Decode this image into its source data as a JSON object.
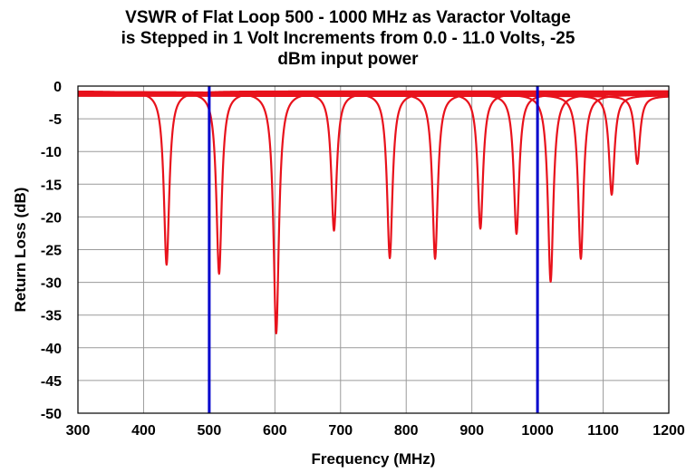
{
  "chart_data": {
    "type": "line",
    "title_lines": [
      "VSWR of Flat Loop 500 - 1000 MHz as Varactor Voltage",
      "is Stepped in 1 Volt Increments from 0.0 - 11.0 Volts, -25",
      "dBm input power"
    ],
    "xlabel": "Frequency (MHz)",
    "ylabel": "Return Loss (dB)",
    "xlim": [
      300,
      1200
    ],
    "ylim": [
      -50,
      0
    ],
    "x_ticks": [
      300,
      400,
      500,
      600,
      700,
      800,
      900,
      1000,
      1100,
      1200
    ],
    "y_ticks": [
      0,
      -5,
      -10,
      -15,
      -20,
      -25,
      -30,
      -35,
      -40,
      -45,
      -50
    ],
    "grid": true,
    "legend": "none",
    "series_color": "#e8121c",
    "marker_color": "#0000cc",
    "vertical_markers_mhz": [
      500,
      1000
    ],
    "series": [
      {
        "resonance_mhz": 435,
        "min_db": -27.3,
        "baseline_db": -0.8
      },
      {
        "resonance_mhz": 515,
        "min_db": -28.7,
        "baseline_db": -0.9
      },
      {
        "resonance_mhz": 602,
        "min_db": -37.8,
        "baseline_db": -0.9
      },
      {
        "resonance_mhz": 690,
        "min_db": -22.1,
        "baseline_db": -1.0
      },
      {
        "resonance_mhz": 775,
        "min_db": -26.3,
        "baseline_db": -1.0
      },
      {
        "resonance_mhz": 844,
        "min_db": -26.4,
        "baseline_db": -1.1
      },
      {
        "resonance_mhz": 913,
        "min_db": -21.8,
        "baseline_db": -1.1
      },
      {
        "resonance_mhz": 968,
        "min_db": -22.6,
        "baseline_db": -1.2
      },
      {
        "resonance_mhz": 1020,
        "min_db": -29.9,
        "baseline_db": -1.2
      },
      {
        "resonance_mhz": 1066,
        "min_db": -26.4,
        "baseline_db": -1.3
      },
      {
        "resonance_mhz": 1113,
        "min_db": -16.6,
        "baseline_db": -1.4
      },
      {
        "resonance_mhz": 1152,
        "min_db": -11.9,
        "baseline_db": -1.5
      }
    ]
  }
}
